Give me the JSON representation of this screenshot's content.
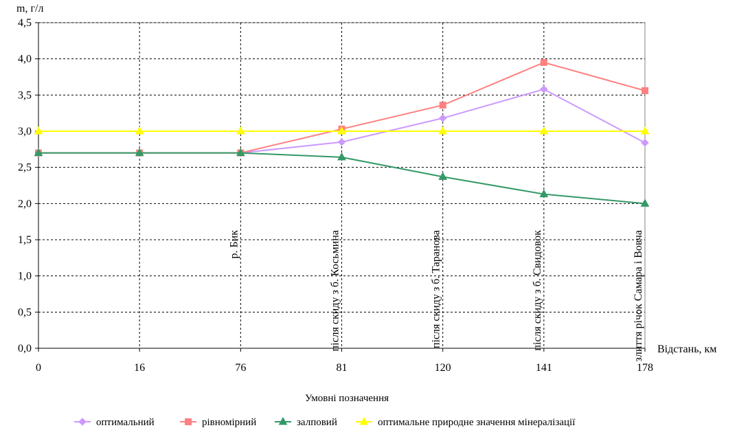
{
  "chart_data": {
    "type": "line",
    "ylabel": "m, г/л",
    "xlabel": "Відстань, км",
    "categories": [
      "0",
      "16",
      "76",
      "81",
      "120",
      "141",
      "178"
    ],
    "ylim": [
      0,
      4.5
    ],
    "yticks": [
      "0,0",
      "0,5",
      "1,0",
      "1,5",
      "2,0",
      "2,5",
      "3,0",
      "3,5",
      "4,0",
      "4,5"
    ],
    "grid": true,
    "legend_title": "Умовні позначення",
    "legend_placement": "bottom",
    "series": [
      {
        "name": "оптимальний",
        "color": "#cc99ff",
        "marker": "diamond",
        "values": [
          2.7,
          2.7,
          2.7,
          2.85,
          3.18,
          3.58,
          2.84
        ]
      },
      {
        "name": "рівномірний",
        "color": "#ff8080",
        "marker": "square",
        "values": [
          2.7,
          2.7,
          2.7,
          3.03,
          3.36,
          3.95,
          3.56
        ]
      },
      {
        "name": "залповий",
        "color": "#339966",
        "marker": "triangle",
        "values": [
          2.7,
          2.7,
          2.7,
          2.64,
          2.37,
          2.13,
          2.0
        ]
      },
      {
        "name": "оптимальне природне значення мінералізації",
        "color": "#ffff00",
        "marker": "triangle",
        "values": [
          3.0,
          3.0,
          3.0,
          3.0,
          3.0,
          3.0,
          3.0
        ]
      }
    ],
    "annotations": [
      {
        "category_index": 2,
        "text": "р. Бик"
      },
      {
        "category_index": 3,
        "text": "після скиду з б. Косьмина"
      },
      {
        "category_index": 4,
        "text": "після скиду з б. Таранова"
      },
      {
        "category_index": 5,
        "text": "після скиду з б. Свидовок"
      },
      {
        "category_index": 6,
        "text": "злиття річок Самара і Вовча"
      }
    ]
  }
}
